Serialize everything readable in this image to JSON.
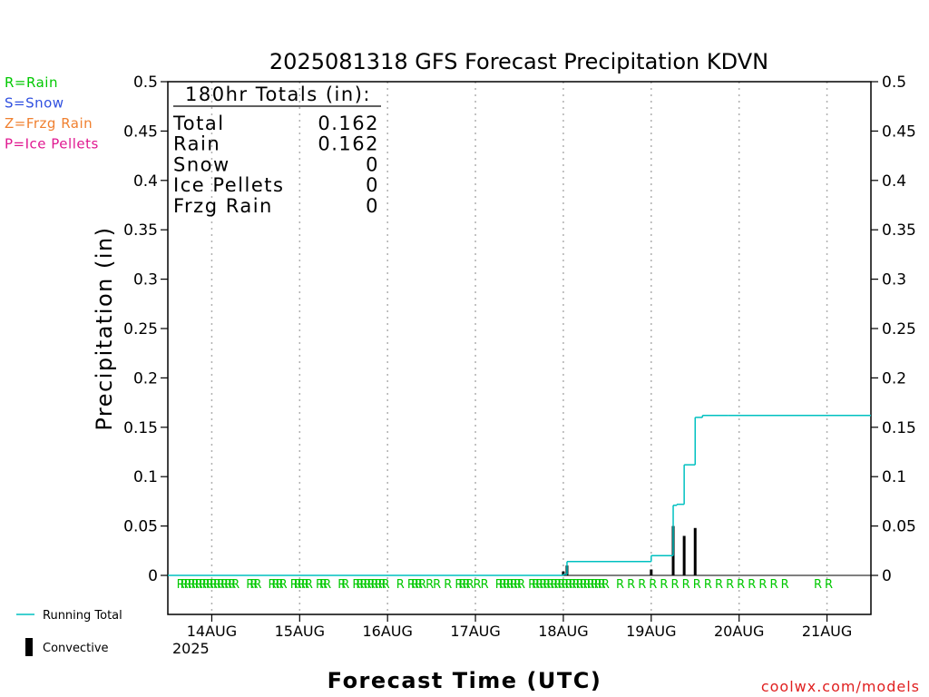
{
  "chart_data": {
    "type": "bar",
    "title": "2025081318 GFS Forecast Precipitation KDVN",
    "xlabel": "Forecast Time (UTC)",
    "ylabel": "Precipitation (in)",
    "ylim": [
      0,
      0.5
    ],
    "yticks": [
      "0",
      "0.05",
      "0.1",
      "0.15",
      "0.2",
      "0.25",
      "0.3",
      "0.35",
      "0.4",
      "0.45",
      "0.5"
    ],
    "xlim_hours": [
      -6,
      186
    ],
    "xticks": [
      {
        "hour": 6,
        "label": "14AUG"
      },
      {
        "hour": 30,
        "label": "15AUG"
      },
      {
        "hour": 54,
        "label": "16AUG"
      },
      {
        "hour": 78,
        "label": "17AUG"
      },
      {
        "hour": 102,
        "label": "18AUG"
      },
      {
        "hour": 126,
        "label": "19AUG"
      },
      {
        "hour": 150,
        "label": "20AUG"
      },
      {
        "hour": 174,
        "label": "21AUG"
      }
    ],
    "year_label": "2025",
    "grid": true,
    "series": [
      {
        "name": "Running Total",
        "type": "line",
        "color": "#00c0c0",
        "x": [
          -6,
          102,
          102,
          103,
          103,
          126,
          126,
          132,
          132,
          133,
          133,
          135,
          135,
          138,
          138,
          140,
          140,
          147,
          147,
          186
        ],
        "y": [
          0,
          0,
          0.001,
          0.001,
          0.014,
          0.014,
          0.02,
          0.02,
          0.071,
          0.071,
          0.072,
          0.072,
          0.112,
          0.112,
          0.16,
          0.16,
          0.162,
          0.162,
          0.162,
          0.162
        ]
      },
      {
        "name": "Convective",
        "type": "bar",
        "color": "#000000",
        "x": [
          102,
          103,
          126,
          132,
          135,
          138
        ],
        "y": [
          0.004,
          0.01,
          0.006,
          0.05,
          0.04,
          0.048
        ]
      }
    ],
    "ptype_markers": {
      "color": "#00c800",
      "label": "R",
      "hours": [
        -2.5,
        -1.5,
        -0.5,
        0.5,
        1.5,
        2.5,
        3.5,
        4.5,
        5.5,
        6.5,
        7.5,
        8.5,
        9.5,
        10.5,
        11.5,
        12.5,
        16.5,
        17.5,
        18.5,
        22.5,
        23.5,
        24.5,
        25.5,
        28.5,
        29.5,
        30.5,
        31.5,
        32.5,
        35.5,
        36.5,
        37.5,
        41.5,
        42.5,
        45.5,
        46.5,
        47.5,
        48.5,
        49.5,
        50.5,
        51.5,
        52.5,
        53.5,
        57.5,
        60.5,
        61.5,
        62.5,
        63.5,
        65.5,
        67.5,
        70.5,
        73.5,
        74.5,
        75.5,
        76.5,
        78.5,
        80.5,
        84.5,
        85.5,
        86.5,
        87.5,
        88.5,
        89.5,
        90.5,
        93.5,
        94.5,
        95.5,
        96.5,
        97.5,
        98.5,
        99.5,
        100.5,
        101.5,
        102.5,
        103.5,
        104.5,
        105.5,
        106.5,
        107.5,
        108.5,
        109.5,
        110.5,
        111.5,
        112.5,
        113.5,
        117.5,
        120.5,
        123.5,
        126.5,
        129.5,
        132.5,
        135.5,
        138.5,
        141.5,
        144.5,
        147.5,
        150.5,
        153.5,
        156.5,
        159.5,
        162.5,
        171.5,
        174.5
      ]
    },
    "totals_box": {
      "title": "180hr Totals (in):",
      "rows": [
        {
          "label": "Total",
          "value": "0.162"
        },
        {
          "label": "Rain",
          "value": "0.162"
        },
        {
          "label": "Snow",
          "value": "0"
        },
        {
          "label": "Ice Pellets",
          "value": "0"
        },
        {
          "label": "Frzg Rain",
          "value": "0"
        }
      ]
    },
    "type_legend": [
      {
        "text": "R=Rain",
        "color": "#00c800"
      },
      {
        "text": "S=Snow",
        "color": "#3050e0"
      },
      {
        "text": "Z=Frzg Rain",
        "color": "#f08030"
      },
      {
        "text": "P=Ice Pellets",
        "color": "#e01890"
      }
    ],
    "legend": [
      {
        "text": "Running Total",
        "symbol": "line",
        "color": "#00c0c0"
      },
      {
        "text": "Convective",
        "symbol": "bar",
        "color": "#000000"
      }
    ],
    "watermark": "coolwx.com/models",
    "watermark_color": "#e02020"
  }
}
